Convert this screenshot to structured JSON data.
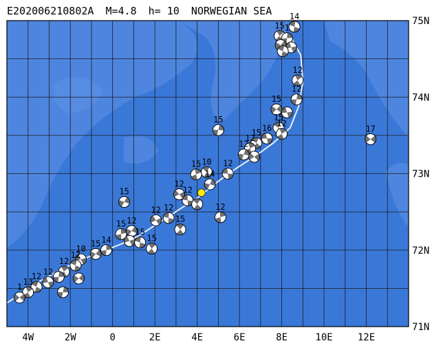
{
  "header": {
    "event_id": "E202006210802A",
    "magnitude_text": "M=4.8",
    "depth_text": "h= 10",
    "region": "NORWEGIAN SEA"
  },
  "colors": {
    "ocean": "#3a78d8",
    "shallow": "#5f92e6",
    "grid": "#1a1a1a",
    "ridge": "#e8eef8",
    "ball_light": "#ffffff",
    "ball_dark": "#707070",
    "epicenter": "#ffee00"
  },
  "axes": {
    "lon_range": [
      -5,
      14
    ],
    "lat_range": [
      71,
      75
    ],
    "lon_ticks": [
      {
        "v": -4,
        "label": "4W"
      },
      {
        "v": -2,
        "label": "2W"
      },
      {
        "v": 0,
        "label": "0"
      },
      {
        "v": 2,
        "label": "2E"
      },
      {
        "v": 4,
        "label": "4E"
      },
      {
        "v": 6,
        "label": "6E"
      },
      {
        "v": 8,
        "label": "8E"
      },
      {
        "v": 10,
        "label": "10E"
      },
      {
        "v": 12,
        "label": "12E"
      }
    ],
    "lat_ticks": [
      {
        "v": 75,
        "label": "75N"
      },
      {
        "v": 74,
        "label": "74N"
      },
      {
        "v": 73,
        "label": "73N"
      },
      {
        "v": 72,
        "label": "72N"
      },
      {
        "v": 71,
        "label": "71N"
      }
    ]
  },
  "ridge_path": [
    [
      -5.0,
      71.31
    ],
    [
      -4.2,
      71.45
    ],
    [
      -3.4,
      71.6
    ],
    [
      -2.6,
      71.72
    ],
    [
      -1.6,
      71.86
    ],
    [
      -0.6,
      71.97
    ],
    [
      0.4,
      72.08
    ],
    [
      1.2,
      72.18
    ],
    [
      2.2,
      72.36
    ],
    [
      3.2,
      72.54
    ],
    [
      4.0,
      72.68
    ],
    [
      5.0,
      72.9
    ],
    [
      5.8,
      73.06
    ],
    [
      6.8,
      73.24
    ],
    [
      7.6,
      73.4
    ],
    [
      8.4,
      73.6
    ],
    [
      8.8,
      73.88
    ],
    [
      9.0,
      74.2
    ],
    [
      8.9,
      74.55
    ],
    [
      8.4,
      74.8
    ]
  ],
  "epicenter": {
    "lon": 4.2,
    "lat": 72.75
  },
  "mechanisms": [
    {
      "lon": 8.6,
      "lat": 74.92,
      "label": "14"
    },
    {
      "lon": 7.9,
      "lat": 74.8,
      "label": "15"
    },
    {
      "lon": 8.25,
      "lat": 74.77,
      "label": "1"
    },
    {
      "lon": 7.95,
      "lat": 74.68,
      "label": ""
    },
    {
      "lon": 8.45,
      "lat": 74.65,
      "label": ""
    },
    {
      "lon": 8.05,
      "lat": 74.6,
      "label": ""
    },
    {
      "lon": 8.75,
      "lat": 74.22,
      "label": "12"
    },
    {
      "lon": 8.7,
      "lat": 73.97,
      "label": "12"
    },
    {
      "lon": 7.75,
      "lat": 73.84,
      "label": "15"
    },
    {
      "lon": 8.25,
      "lat": 73.8,
      "label": ""
    },
    {
      "lon": 7.85,
      "lat": 73.6,
      "label": "15"
    },
    {
      "lon": 8.0,
      "lat": 73.52,
      "label": "12"
    },
    {
      "lon": 5.0,
      "lat": 73.57,
      "label": "15"
    },
    {
      "lon": 12.2,
      "lat": 73.45,
      "label": "17"
    },
    {
      "lon": 7.3,
      "lat": 73.46,
      "label": "16"
    },
    {
      "lon": 6.8,
      "lat": 73.4,
      "label": "15"
    },
    {
      "lon": 6.5,
      "lat": 73.33,
      "label": "12"
    },
    {
      "lon": 6.2,
      "lat": 73.25,
      "label": "12"
    },
    {
      "lon": 6.7,
      "lat": 73.22,
      "label": ""
    },
    {
      "lon": 5.45,
      "lat": 73.0,
      "label": "12"
    },
    {
      "lon": 4.45,
      "lat": 73.02,
      "label": "10"
    },
    {
      "lon": 3.95,
      "lat": 72.99,
      "label": "15"
    },
    {
      "lon": 4.6,
      "lat": 72.86,
      "label": "14"
    },
    {
      "lon": 3.15,
      "lat": 72.73,
      "label": "12"
    },
    {
      "lon": 3.55,
      "lat": 72.65,
      "label": "12"
    },
    {
      "lon": 4.0,
      "lat": 72.6,
      "label": ""
    },
    {
      "lon": 5.1,
      "lat": 72.43,
      "label": "12"
    },
    {
      "lon": 0.55,
      "lat": 72.63,
      "label": "15"
    },
    {
      "lon": 2.05,
      "lat": 72.39,
      "label": "12"
    },
    {
      "lon": 2.65,
      "lat": 72.42,
      "label": "12"
    },
    {
      "lon": 3.2,
      "lat": 72.27,
      "label": "15"
    },
    {
      "lon": 0.4,
      "lat": 72.21,
      "label": "15"
    },
    {
      "lon": 0.9,
      "lat": 72.25,
      "label": "12"
    },
    {
      "lon": 0.8,
      "lat": 72.12,
      "label": ""
    },
    {
      "lon": 1.3,
      "lat": 72.1,
      "label": "15"
    },
    {
      "lon": 1.85,
      "lat": 72.02,
      "label": "15"
    },
    {
      "lon": -0.3,
      "lat": 72.0,
      "label": "14"
    },
    {
      "lon": -0.8,
      "lat": 71.95,
      "label": "15"
    },
    {
      "lon": -1.5,
      "lat": 71.88,
      "label": "10"
    },
    {
      "lon": -1.75,
      "lat": 71.8,
      "label": "12"
    },
    {
      "lon": -2.3,
      "lat": 71.72,
      "label": "12"
    },
    {
      "lon": -2.55,
      "lat": 71.65,
      "label": ""
    },
    {
      "lon": -1.6,
      "lat": 71.63,
      "label": ""
    },
    {
      "lon": -3.05,
      "lat": 71.58,
      "label": "12"
    },
    {
      "lon": -3.6,
      "lat": 71.52,
      "label": "12"
    },
    {
      "lon": -4.0,
      "lat": 71.45,
      "label": "13"
    },
    {
      "lon": -2.35,
      "lat": 71.45,
      "label": ""
    },
    {
      "lon": -4.4,
      "lat": 71.38,
      "label": "1"
    }
  ]
}
